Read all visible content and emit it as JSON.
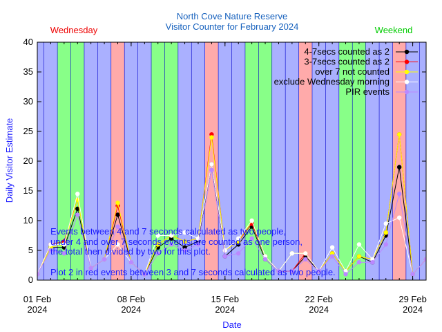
{
  "chart_data": {
    "type": "line",
    "title": "North Cove Nature Reserve",
    "subtitle": "Visitor Counter for February 2024",
    "xlabel": "Date",
    "ylabel": "Daily Visitor Estimate",
    "xlim": [
      "2024-02-01",
      "2024-03-01"
    ],
    "ylim": [
      0,
      40
    ],
    "grid": false,
    "legend_placement": "top-right",
    "day_labels": {
      "wednesday": "Wednesday",
      "weekend": "Weekend"
    },
    "x_ticks": [
      {
        "date": "2024-02-01",
        "line1": "01 Feb",
        "line2": "2024"
      },
      {
        "date": "2024-02-08",
        "line1": "08 Feb",
        "line2": "2024"
      },
      {
        "date": "2024-02-15",
        "line1": "15 Feb",
        "line2": "2024"
      },
      {
        "date": "2024-02-22",
        "line1": "22 Feb",
        "line2": "2024"
      },
      {
        "date": "2024-02-29",
        "line1": "29 Feb",
        "line2": "2024"
      }
    ],
    "y_ticks": [
      0,
      5,
      10,
      15,
      20,
      25,
      30,
      35,
      40
    ],
    "band_colors": {
      "weekday": "#aab0ff",
      "wednesday": "#ffaaaa",
      "weekend": "#88ff88"
    },
    "bands": [
      {
        "date": "2024-02-01",
        "kind": "weekday"
      },
      {
        "date": "2024-02-02",
        "kind": "weekday"
      },
      {
        "date": "2024-02-03",
        "kind": "weekend"
      },
      {
        "date": "2024-02-04",
        "kind": "weekend"
      },
      {
        "date": "2024-02-05",
        "kind": "weekday"
      },
      {
        "date": "2024-02-06",
        "kind": "weekday"
      },
      {
        "date": "2024-02-07",
        "kind": "wednesday"
      },
      {
        "date": "2024-02-08",
        "kind": "weekday"
      },
      {
        "date": "2024-02-09",
        "kind": "weekday"
      },
      {
        "date": "2024-02-10",
        "kind": "weekend"
      },
      {
        "date": "2024-02-11",
        "kind": "weekend"
      },
      {
        "date": "2024-02-12",
        "kind": "weekday"
      },
      {
        "date": "2024-02-13",
        "kind": "weekday"
      },
      {
        "date": "2024-02-14",
        "kind": "wednesday"
      },
      {
        "date": "2024-02-15",
        "kind": "weekday"
      },
      {
        "date": "2024-02-16",
        "kind": "weekday"
      },
      {
        "date": "2024-02-17",
        "kind": "weekend"
      },
      {
        "date": "2024-02-18",
        "kind": "weekend"
      },
      {
        "date": "2024-02-19",
        "kind": "weekday"
      },
      {
        "date": "2024-02-20",
        "kind": "weekday"
      },
      {
        "date": "2024-02-21",
        "kind": "wednesday"
      },
      {
        "date": "2024-02-22",
        "kind": "weekday"
      },
      {
        "date": "2024-02-23",
        "kind": "weekday"
      },
      {
        "date": "2024-02-24",
        "kind": "weekend"
      },
      {
        "date": "2024-02-25",
        "kind": "weekend"
      },
      {
        "date": "2024-02-26",
        "kind": "weekday"
      },
      {
        "date": "2024-02-27",
        "kind": "weekday"
      },
      {
        "date": "2024-02-28",
        "kind": "wednesday"
      },
      {
        "date": "2024-02-29",
        "kind": "weekday"
      }
    ],
    "x": [
      "2024-01-31",
      "2024-02-01",
      "2024-02-02",
      "2024-02-03",
      "2024-02-04",
      "2024-02-05",
      "2024-02-06",
      "2024-02-07",
      "2024-02-08",
      "2024-02-09",
      "2024-02-10",
      "2024-02-11",
      "2024-02-12",
      "2024-02-13",
      "2024-02-14",
      "2024-02-15",
      "2024-02-16",
      "2024-02-17",
      "2024-02-18",
      "2024-02-19",
      "2024-02-20",
      "2024-02-21",
      "2024-02-22",
      "2024-02-23",
      "2024-02-24",
      "2024-02-25",
      "2024-02-26",
      "2024-02-27",
      "2024-02-28",
      "2024-02-29",
      "2024-03-01"
    ],
    "series": [
      {
        "name": "4-7secs counted as 2",
        "color": "#000000",
        "values": [
          8,
          1,
          5.5,
          5.5,
          12,
          2,
          3.5,
          11,
          3,
          1,
          5.5,
          7,
          5.5,
          6.5,
          19.5,
          4,
          6,
          9,
          3.5,
          1.5,
          1.5,
          4,
          1.5,
          4.5,
          1.5,
          4,
          3,
          7.5,
          19,
          1,
          3.5
        ]
      },
      {
        "name": "3-7secs counted as 2",
        "color": "#ff0000",
        "values": [
          8,
          1,
          6,
          6.5,
          13.5,
          2,
          3.5,
          12.5,
          3,
          1,
          6,
          7.5,
          6.5,
          7,
          24.5,
          5,
          6.5,
          9.5,
          4,
          1.5,
          1.5,
          4.5,
          1.5,
          4.5,
          1.5,
          4,
          3.5,
          8,
          24.5,
          1,
          3.5
        ]
      },
      {
        "name": "over 7 not counted",
        "color": "#ffff00",
        "values": [
          7.5,
          1,
          5.5,
          6,
          13.5,
          2,
          3.5,
          13,
          3,
          1,
          6,
          7.5,
          6.5,
          7,
          24,
          5,
          6.5,
          10,
          4,
          1.5,
          4.5,
          4.5,
          1.5,
          4.5,
          1.5,
          4,
          3.5,
          8,
          24.5,
          1,
          3.5
        ]
      },
      {
        "name": "exclude Wednesday morning",
        "color": "#ffffff",
        "values": [
          7.5,
          1,
          6,
          6,
          14.5,
          2,
          3.5,
          6,
          3,
          1,
          7.5,
          7.5,
          8,
          7,
          19.5,
          5,
          7,
          10,
          4,
          1.5,
          4.5,
          4.5,
          1.5,
          5.5,
          1.5,
          6,
          3.5,
          9.5,
          10.5,
          1,
          3.5
        ]
      },
      {
        "name": "PIR events",
        "color": "#bb88ff",
        "values": [
          7,
          1,
          5,
          4.5,
          11,
          2,
          3.5,
          9,
          3,
          1,
          4.5,
          6,
          5,
          6,
          18.5,
          4,
          4.5,
          7,
          3.5,
          1.5,
          1.5,
          3.5,
          1.5,
          4,
          1,
          3,
          3,
          6,
          14.5,
          1,
          3.5
        ]
      }
    ],
    "annotations": [
      "Events between 4 and 7 seconds calculated as two people,",
      "under 4 and over 7 seconds events are counted as one person,",
      "the total then divided by two for this plot.",
      "Plot 2 in red events between 3 and 7 seconds calculated as two people."
    ]
  }
}
